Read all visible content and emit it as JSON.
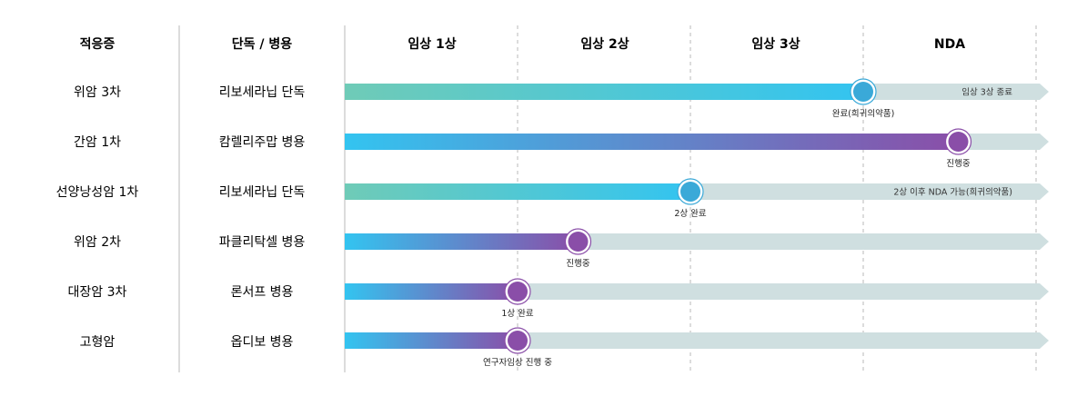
{
  "headers": {
    "indication": "적응증",
    "regimen": "단독 / 병용",
    "phases": [
      "임상 1상",
      "임상 2상",
      "임상 3상",
      "NDA"
    ]
  },
  "rows": [
    {
      "indication": "위암 3차",
      "regimen": "리보세라닙 단독",
      "progress": 3.0,
      "gradient": [
        "#6fcbb7",
        "#33c4f0"
      ],
      "marker_color": "#3aa9d8",
      "marker_label": "완료(희귀의약품)",
      "status_text": "임상 3상 종료"
    },
    {
      "indication": "간암 1차",
      "regimen": "캄렐리주맙 병용",
      "progress": 3.55,
      "gradient": [
        "#33c4f0",
        "#8a4ea8"
      ],
      "marker_color": "#8a4ea8",
      "marker_label": "진행중",
      "status_text": ""
    },
    {
      "indication": "선양낭성암 1차",
      "regimen": "리보세라닙 단독",
      "progress": 2.0,
      "gradient": [
        "#6fcbb7",
        "#33c4f0"
      ],
      "marker_color": "#3aa9d8",
      "marker_label": "2상 완료",
      "status_text": "2상 이후 NDA 가능(희귀의약품)"
    },
    {
      "indication": "위암 2차",
      "regimen": "파클리탁셀 병용",
      "progress": 1.35,
      "gradient": [
        "#33c4f0",
        "#8a4ea8"
      ],
      "marker_color": "#8a4ea8",
      "marker_label": "진행중",
      "status_text": ""
    },
    {
      "indication": "대장암 3차",
      "regimen": "론서프 병용",
      "progress": 1.0,
      "gradient": [
        "#33c4f0",
        "#8a4ea8"
      ],
      "marker_color": "#8a4ea8",
      "marker_label": "1상 완료",
      "status_text": ""
    },
    {
      "indication": "고형암",
      "regimen": "옵디보 병용",
      "progress": 1.0,
      "gradient": [
        "#33c4f0",
        "#8a4ea8"
      ],
      "marker_color": "#8a4ea8",
      "marker_label": "연구자임상 진행 중",
      "status_text": ""
    }
  ],
  "colors": {
    "track": "#cfdfe0",
    "divider": "#b9b9b9",
    "dashed": "#b9b9b9"
  }
}
